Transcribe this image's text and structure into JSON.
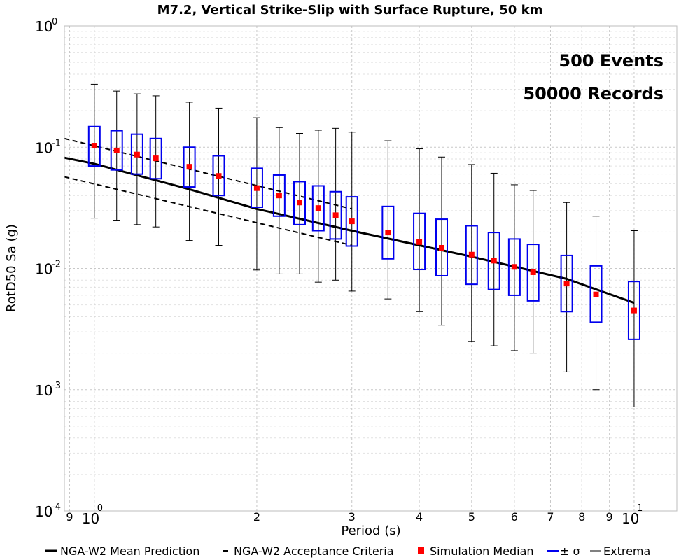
{
  "chart_data": {
    "type": "box",
    "title": "M7.2, Vertical Strike-Slip with Surface Rupture, 50 km",
    "xlabel": "Period (s)",
    "ylabel": "RotD50 Sa (g)",
    "x_scale": "log",
    "y_scale": "log",
    "xlim": [
      0.88,
      12
    ],
    "ylim": [
      0.0001,
      1
    ],
    "grid": true,
    "legend_position": "bottom",
    "annotations": [
      "500 Events",
      "50000 Records"
    ],
    "x_ticks": [
      {
        "label": "9"
      },
      {
        "label": "10",
        "sup": "0"
      },
      {
        "label": "2"
      },
      {
        "label": "3"
      },
      {
        "label": "4"
      },
      {
        "label": "5"
      },
      {
        "label": "6"
      },
      {
        "label": "7"
      },
      {
        "label": "8"
      },
      {
        "label": "9"
      },
      {
        "label": "10",
        "sup": "1"
      }
    ],
    "y_ticks": [
      {
        "label": "10",
        "sup": "0"
      },
      {
        "label": "10",
        "sup": "-1"
      },
      {
        "label": "10",
        "sup": "-2"
      },
      {
        "label": "10",
        "sup": "-3"
      },
      {
        "label": "10",
        "sup": "-4"
      }
    ],
    "legend": [
      {
        "label": "NGA-W2 Mean Prediction"
      },
      {
        "label": "NGA-W2 Acceptance Criteria"
      },
      {
        "label": "Simulation Median"
      },
      {
        "label": "± σ"
      },
      {
        "label": "Extrema"
      }
    ],
    "series": [
      {
        "name": "NGA-W2 Mean Prediction",
        "x": [
          0.88,
          1.0,
          1.5,
          2.0,
          3.0,
          4.0,
          5.0,
          7.5,
          10.0
        ],
        "y": [
          0.082,
          0.073,
          0.045,
          0.031,
          0.0205,
          0.0155,
          0.0125,
          0.0082,
          0.0052
        ]
      },
      {
        "name": "NGA-W2 Acceptance Criteria (upper)",
        "x": [
          0.88,
          3.0
        ],
        "y": [
          0.118,
          0.031
        ]
      },
      {
        "name": "NGA-W2 Acceptance Criteria (lower)",
        "x": [
          0.88,
          3.0
        ],
        "y": [
          0.057,
          0.0155
        ]
      }
    ],
    "boxes": [
      {
        "period": 1.0,
        "median": 0.103,
        "sigma_low": 0.07,
        "sigma_high": 0.148,
        "min": 0.026,
        "max": 0.33
      },
      {
        "period": 1.1,
        "median": 0.094,
        "sigma_low": 0.065,
        "sigma_high": 0.137,
        "min": 0.025,
        "max": 0.29
      },
      {
        "period": 1.2,
        "median": 0.087,
        "sigma_low": 0.06,
        "sigma_high": 0.128,
        "min": 0.023,
        "max": 0.275
      },
      {
        "period": 1.3,
        "median": 0.081,
        "sigma_low": 0.055,
        "sigma_high": 0.118,
        "min": 0.022,
        "max": 0.265
      },
      {
        "period": 1.5,
        "median": 0.069,
        "sigma_low": 0.047,
        "sigma_high": 0.1,
        "min": 0.017,
        "max": 0.235
      },
      {
        "period": 1.7,
        "median": 0.058,
        "sigma_low": 0.04,
        "sigma_high": 0.085,
        "min": 0.0155,
        "max": 0.21
      },
      {
        "period": 2.0,
        "median": 0.046,
        "sigma_low": 0.032,
        "sigma_high": 0.067,
        "min": 0.0097,
        "max": 0.175
      },
      {
        "period": 2.2,
        "median": 0.04,
        "sigma_low": 0.027,
        "sigma_high": 0.059,
        "min": 0.009,
        "max": 0.145
      },
      {
        "period": 2.4,
        "median": 0.035,
        "sigma_low": 0.023,
        "sigma_high": 0.052,
        "min": 0.009,
        "max": 0.13
      },
      {
        "period": 2.6,
        "median": 0.0315,
        "sigma_low": 0.0205,
        "sigma_high": 0.048,
        "min": 0.0077,
        "max": 0.138
      },
      {
        "period": 2.8,
        "median": 0.0275,
        "sigma_low": 0.0175,
        "sigma_high": 0.043,
        "min": 0.008,
        "max": 0.143
      },
      {
        "period": 3.0,
        "median": 0.0245,
        "sigma_low": 0.0153,
        "sigma_high": 0.039,
        "min": 0.0065,
        "max": 0.133
      },
      {
        "period": 3.5,
        "median": 0.0198,
        "sigma_low": 0.012,
        "sigma_high": 0.0325,
        "min": 0.0056,
        "max": 0.113
      },
      {
        "period": 4.0,
        "median": 0.0165,
        "sigma_low": 0.0098,
        "sigma_high": 0.0285,
        "min": 0.0044,
        "max": 0.097
      },
      {
        "period": 4.4,
        "median": 0.0148,
        "sigma_low": 0.0087,
        "sigma_high": 0.0255,
        "min": 0.0034,
        "max": 0.083
      },
      {
        "period": 5.0,
        "median": 0.013,
        "sigma_low": 0.0074,
        "sigma_high": 0.0225,
        "min": 0.0025,
        "max": 0.072
      },
      {
        "period": 5.5,
        "median": 0.0116,
        "sigma_low": 0.0067,
        "sigma_high": 0.0198,
        "min": 0.0023,
        "max": 0.061
      },
      {
        "period": 6.0,
        "median": 0.0103,
        "sigma_low": 0.006,
        "sigma_high": 0.0175,
        "min": 0.0021,
        "max": 0.049
      },
      {
        "period": 6.5,
        "median": 0.0093,
        "sigma_low": 0.0054,
        "sigma_high": 0.0158,
        "min": 0.002,
        "max": 0.044
      },
      {
        "period": 7.5,
        "median": 0.0075,
        "sigma_low": 0.0044,
        "sigma_high": 0.0128,
        "min": 0.0014,
        "max": 0.035
      },
      {
        "period": 8.5,
        "median": 0.0061,
        "sigma_low": 0.0036,
        "sigma_high": 0.0105,
        "min": 0.001,
        "max": 0.027
      },
      {
        "period": 10.0,
        "median": 0.0045,
        "sigma_low": 0.0026,
        "sigma_high": 0.0078,
        "min": 0.00072,
        "max": 0.0205
      }
    ]
  },
  "colors": {
    "mean": "#000000",
    "acceptance": "#000000",
    "median": "#ff0000",
    "sigma": "#0000ee",
    "extrema": "#000000",
    "grid_major": "#c8c8c8",
    "grid_minor": "#e2e2e2"
  }
}
